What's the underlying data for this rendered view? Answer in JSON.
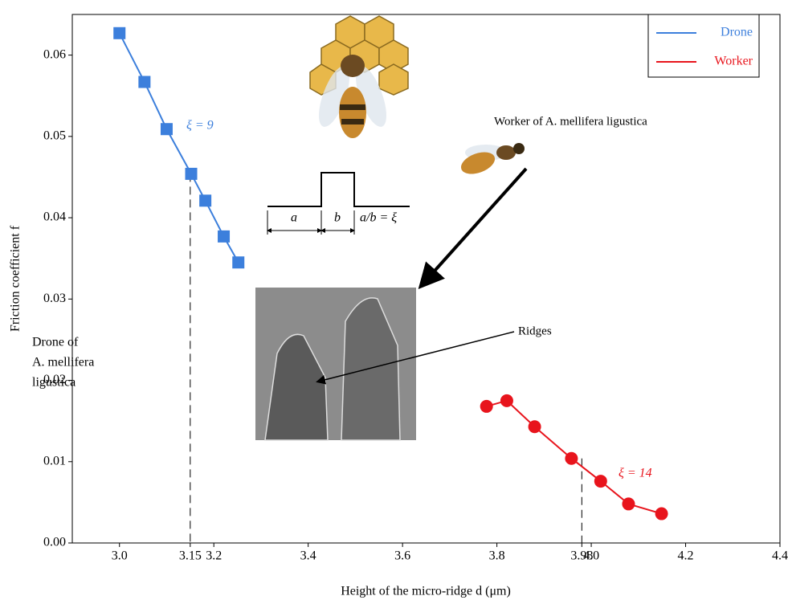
{
  "chart_data": {
    "type": "line",
    "x_label": "Height of the micro-ridge  d  (μm)",
    "y_label": "Friction coefficient  f",
    "xlim": [
      2.9,
      4.4
    ],
    "ylim": [
      0,
      0.065
    ],
    "xticks": [
      {
        "value": 3,
        "label": "3.0"
      },
      3.15,
      3.2,
      3.4,
      3.6,
      3.8,
      3.98,
      {
        "value": 4,
        "label": "4.0"
      },
      4.2,
      4.4
    ],
    "yticks": [
      {
        "value": 0,
        "label": "0.00"
      },
      0.01,
      0.02,
      0.03,
      0.04,
      0.05,
      0.06
    ],
    "legend_position": "upper right",
    "series": [
      {
        "name": "Drone",
        "color": "#3c7fdc",
        "marker": "square",
        "x": [
          3.0,
          3.053,
          3.1,
          3.152,
          3.182,
          3.221,
          3.252
        ],
        "values": [
          0.0627,
          0.0567,
          0.0509,
          0.0454,
          0.0421,
          0.0377,
          0.0345
        ]
      },
      {
        "name": "Worker",
        "color": "#e8141c",
        "marker": "circle",
        "x": [
          3.778,
          3.821,
          3.88,
          3.958,
          4.02,
          4.079,
          4.149
        ],
        "values": [
          0.0168,
          0.0175,
          0.0143,
          0.0104,
          0.0076,
          0.0048,
          0.0036
        ]
      }
    ],
    "reference_lines": [
      {
        "x": 3.15,
        "y": 0.0454
      },
      {
        "x": 3.98,
        "y": 0.0104
      }
    ],
    "annotations": {
      "drone_xi": "ξ = 9",
      "worker_xi": "ξ = 14",
      "worker_caption": "Worker of A. mellifera ligustica",
      "ridges": "Ridges",
      "drone_caption": [
        "Drone of",
        "A. mellifera",
        "ligustica"
      ],
      "diagram_a": "a",
      "diagram_b": "b",
      "diagram_ratio": "a/b = ξ"
    }
  }
}
